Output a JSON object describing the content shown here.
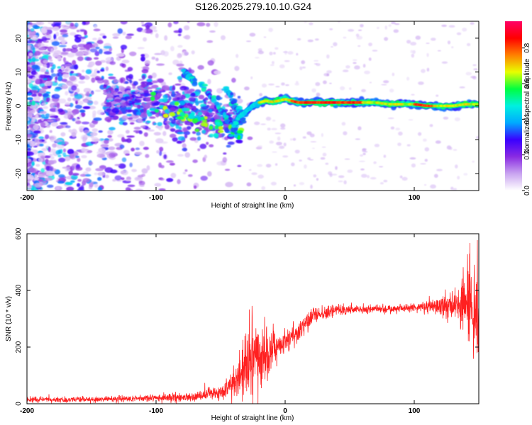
{
  "title": "S126.2025.279.10.10.G24",
  "chart_data": [
    {
      "type": "heatmap",
      "name": "spectrogram",
      "xlabel": "Height of straight line (km)",
      "ylabel": "Frequency (Hz)",
      "xlim": [
        -200,
        150
      ],
      "ylim": [
        -25,
        25
      ],
      "xticks": [
        -200,
        -100,
        0,
        100
      ],
      "xtick_labels": [
        "-200",
        "-100",
        "0",
        "100"
      ],
      "yticks": [
        20,
        10,
        0,
        -10,
        -20
      ],
      "ytick_labels": [
        "20",
        "10",
        "0",
        "-10",
        "-20"
      ],
      "colorbar": {
        "label": "Normalized spectral amplitude",
        "range": [
          0.0,
          0.95
        ],
        "ticks": [
          0.0,
          0.2,
          0.4,
          0.6,
          0.8
        ],
        "tick_labels": [
          "0.0",
          "0.2",
          "0.4",
          "0.6",
          "0.8"
        ],
        "stops": [
          "#ffffff",
          "#c9a4f0",
          "#8a2be2",
          "#3a00ff",
          "#00aaff",
          "#00f0e0",
          "#00ff40",
          "#e8ff00",
          "#ff8000",
          "#ff0000",
          "#ff0066"
        ]
      },
      "features": {
        "dominant_ridge": {
          "description_hidden": true,
          "x": [
            -40,
            -35,
            -30,
            -25,
            -20,
            -15,
            -10,
            -5,
            0,
            10,
            20,
            30,
            40,
            50,
            60,
            70,
            80,
            90,
            100,
            110,
            120,
            130,
            140,
            150
          ],
          "y": [
            -6,
            -3,
            -1.5,
            0,
            1,
            1.5,
            1.2,
            1.5,
            2,
            1,
            1,
            1,
            1,
            1,
            1,
            1,
            0.5,
            0.5,
            0.5,
            0,
            0,
            0,
            0.5,
            0.5
          ]
        },
        "diagonal_streaks": [
          {
            "x": [
              -65,
              -35
            ],
            "y": [
              7,
              -9
            ]
          },
          {
            "x": [
              -45,
              -32
            ],
            "y": [
              5,
              -5
            ]
          },
          {
            "x": [
              -78,
              -70
            ],
            "y": [
              10,
              7
            ]
          }
        ]
      }
    },
    {
      "type": "line",
      "name": "snr",
      "xlabel": "Height of straight line (km)",
      "ylabel": "SNR (10 * v/v)",
      "xlim": [
        -200,
        150
      ],
      "ylim": [
        0,
        600
      ],
      "xticks": [
        -200,
        -100,
        0,
        100
      ],
      "xtick_labels": [
        "-200",
        "-100",
        "0",
        "100"
      ],
      "yticks": [
        0,
        200,
        400,
        600
      ],
      "ytick_labels": [
        "0",
        "200",
        "400",
        "600"
      ],
      "color": "#ff2020",
      "envelope": {
        "x": [
          -200,
          -150,
          -100,
          -70,
          -50,
          -40,
          -35,
          -30,
          -25,
          -20,
          -15,
          -10,
          -5,
          0,
          10,
          20,
          30,
          40,
          60,
          80,
          100,
          120,
          130,
          140,
          150
        ],
        "mean": [
          15,
          15,
          20,
          25,
          40,
          65,
          100,
          140,
          170,
          150,
          160,
          190,
          210,
          225,
          250,
          300,
          320,
          330,
          335,
          335,
          340,
          345,
          350,
          360,
          330
        ],
        "spread": [
          8,
          10,
          12,
          15,
          25,
          45,
          80,
          100,
          110,
          110,
          95,
          80,
          50,
          40,
          40,
          40,
          25,
          20,
          15,
          15,
          15,
          30,
          60,
          130,
          150
        ]
      }
    }
  ]
}
